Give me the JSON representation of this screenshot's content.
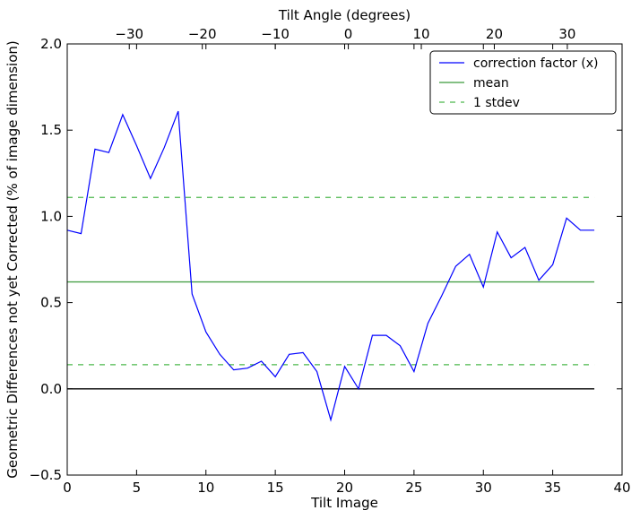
{
  "chart_data": {
    "type": "line",
    "title": "",
    "xlabel": "Tilt Image",
    "ylabel": "Geometric Differences not yet Corrected (% of image dimension)",
    "top_xlabel": "Tilt Angle (degrees)",
    "xlim": [
      0,
      40
    ],
    "ylim": [
      -0.5,
      2.0
    ],
    "top_xlim_degrees": [
      -38.5,
      37.5
    ],
    "x_ticks": [
      0,
      5,
      10,
      15,
      20,
      25,
      30,
      35,
      40
    ],
    "x_tick_labels": [
      "0",
      "5",
      "10",
      "15",
      "20",
      "25",
      "30",
      "35",
      "40"
    ],
    "y_ticks": [
      -0.5,
      0.0,
      0.5,
      1.0,
      1.5,
      2.0
    ],
    "y_tick_labels": [
      "−0.5",
      "0.0",
      "0.5",
      "1.0",
      "1.5",
      "2.0"
    ],
    "top_ticks": [
      -30,
      -20,
      -10,
      0,
      10,
      20,
      30
    ],
    "top_tick_labels": [
      "−30",
      "−20",
      "−10",
      "0",
      "10",
      "20",
      "30"
    ],
    "grid": false,
    "legend_position": "top-right",
    "series": [
      {
        "name": "correction factor (x)",
        "color": "#0000ff",
        "style": "solid",
        "x": [
          0,
          1,
          2,
          3,
          4,
          5,
          6,
          7,
          8,
          9,
          10,
          11,
          12,
          13,
          14,
          15,
          16,
          17,
          18,
          19,
          20,
          21,
          22,
          23,
          24,
          25,
          26,
          27,
          28,
          29,
          30,
          31,
          32,
          33,
          34,
          35,
          36,
          37,
          38
        ],
        "y": [
          0.92,
          0.9,
          1.39,
          1.37,
          1.59,
          1.41,
          1.22,
          1.4,
          1.61,
          0.55,
          0.33,
          0.2,
          0.11,
          0.12,
          0.16,
          0.07,
          0.2,
          0.21,
          0.1,
          -0.18,
          0.13,
          0.0,
          0.31,
          0.31,
          0.25,
          0.1,
          0.38,
          0.54,
          0.71,
          0.78,
          0.59,
          0.91,
          0.76,
          0.82,
          0.63,
          0.72,
          0.99,
          0.92,
          0.92
        ]
      },
      {
        "name": "mean",
        "color": "#3a9a3a",
        "style": "solid",
        "x": [
          0,
          38
        ],
        "y": [
          0.62,
          0.62
        ]
      },
      {
        "name": "1 stdev",
        "color": "#4cb84c",
        "style": "dashed",
        "x": [
          0,
          38
        ],
        "y": [
          1.11,
          1.11
        ],
        "x2": [
          0,
          38
        ],
        "y2": [
          0.14,
          0.14
        ]
      }
    ],
    "reference_line": {
      "y": 0.0,
      "x": [
        0,
        38
      ],
      "color": "#000000"
    }
  }
}
